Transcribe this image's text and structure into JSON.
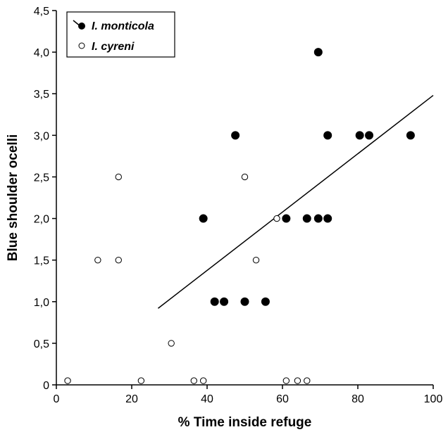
{
  "chart_data": {
    "type": "scatter",
    "title": "",
    "xlabel": "% Time inside refuge",
    "ylabel": "Blue shoulder ocelli",
    "xlim": [
      0,
      100
    ],
    "ylim": [
      0,
      4.5
    ],
    "x_ticks": [
      0,
      20,
      40,
      60,
      80,
      100
    ],
    "x_tick_labels": [
      "0",
      "20",
      "40",
      "60",
      "80",
      "100"
    ],
    "y_ticks": [
      0,
      0.5,
      1.0,
      1.5,
      2.0,
      2.5,
      3.0,
      3.5,
      4.0,
      4.5
    ],
    "y_tick_labels": [
      "0",
      "0,5",
      "1,0",
      "1,5",
      "2,0",
      "2,5",
      "3,0",
      "3,5",
      "4,0",
      "4,5"
    ],
    "grid": false,
    "legend_position": "top-left",
    "series": [
      {
        "name": "I. monticola",
        "marker": "filled-circle",
        "points": [
          {
            "x": 39,
            "y": 2.0
          },
          {
            "x": 42,
            "y": 1.0
          },
          {
            "x": 44.5,
            "y": 1.0
          },
          {
            "x": 47.5,
            "y": 3.0
          },
          {
            "x": 50,
            "y": 1.0
          },
          {
            "x": 55.5,
            "y": 1.0
          },
          {
            "x": 61,
            "y": 2.0
          },
          {
            "x": 66.5,
            "y": 2.0
          },
          {
            "x": 69.5,
            "y": 2.0
          },
          {
            "x": 69.5,
            "y": 4.0
          },
          {
            "x": 72,
            "y": 3.0
          },
          {
            "x": 72,
            "y": 2.0
          },
          {
            "x": 80.5,
            "y": 3.0
          },
          {
            "x": 83,
            "y": 3.0
          },
          {
            "x": 94,
            "y": 3.0
          }
        ]
      },
      {
        "name": "I. cyreni",
        "marker": "open-circle",
        "points": [
          {
            "x": 3,
            "y": 0.05
          },
          {
            "x": 11,
            "y": 1.5
          },
          {
            "x": 16.5,
            "y": 1.5
          },
          {
            "x": 16.5,
            "y": 2.5
          },
          {
            "x": 22.5,
            "y": 0.05
          },
          {
            "x": 30.5,
            "y": 0.5
          },
          {
            "x": 36.5,
            "y": 0.05
          },
          {
            "x": 39,
            "y": 0.05
          },
          {
            "x": 50,
            "y": 2.5
          },
          {
            "x": 53,
            "y": 1.5
          },
          {
            "x": 58.5,
            "y": 2.0
          },
          {
            "x": 61,
            "y": 0.05
          },
          {
            "x": 64,
            "y": 0.05
          },
          {
            "x": 66.5,
            "y": 0.05
          }
        ]
      }
    ],
    "regression_line": {
      "series": "I. monticola",
      "x": [
        27,
        100
      ],
      "y": [
        0.92,
        3.48
      ]
    }
  }
}
